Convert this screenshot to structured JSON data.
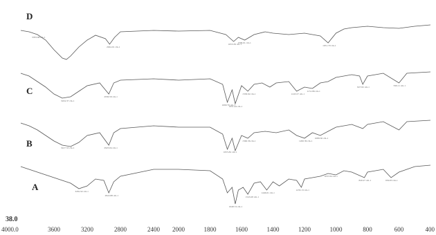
{
  "chart_data": {
    "type": "line",
    "title": "",
    "xlabel": "",
    "ylabel": "",
    "x_ticks": [
      4000.0,
      3600,
      3200,
      2800,
      2400,
      2000,
      1800,
      1600,
      1400,
      1200,
      1000,
      800,
      600,
      400
    ],
    "x_tick_labels": [
      "4000.0",
      "3600",
      "3200",
      "2800",
      "2400",
      "2000",
      "1800",
      "1600",
      "1400",
      "1200",
      "1000",
      "800",
      "600",
      "400"
    ],
    "xlim": [
      4000,
      400
    ],
    "y_tick_label": "38.0",
    "legend": "none",
    "grid": false,
    "series": [
      {
        "name": "D",
        "points": [
          [
            4000,
            8
          ],
          [
            3900,
            10
          ],
          [
            3800,
            14
          ],
          [
            3700,
            22
          ],
          [
            3600,
            36
          ],
          [
            3500,
            48
          ],
          [
            3450,
            50
          ],
          [
            3400,
            45
          ],
          [
            3300,
            32
          ],
          [
            3200,
            22
          ],
          [
            3100,
            15
          ],
          [
            2980,
            20
          ],
          [
            2930,
            28
          ],
          [
            2870,
            18
          ],
          [
            2800,
            10
          ],
          [
            2400,
            8
          ],
          [
            2000,
            9
          ],
          [
            1800,
            8
          ],
          [
            1700,
            14
          ],
          [
            1650,
            24
          ],
          [
            1620,
            18
          ],
          [
            1580,
            22
          ],
          [
            1520,
            14
          ],
          [
            1450,
            10
          ],
          [
            1400,
            12
          ],
          [
            1300,
            14
          ],
          [
            1200,
            12
          ],
          [
            1100,
            16
          ],
          [
            1050,
            26
          ],
          [
            1000,
            12
          ],
          [
            950,
            6
          ],
          [
            900,
            4
          ],
          [
            800,
            2
          ],
          [
            700,
            4
          ],
          [
            600,
            5
          ],
          [
            500,
            2
          ],
          [
            400,
            0
          ]
        ],
        "peaks": [
          {
            "x": 3800,
            "label": "3783.88 cm-1"
          },
          {
            "x": 2900,
            "label": "2924.01 cm-1"
          },
          {
            "x": 1650,
            "label": "1653.39 cm-1"
          },
          {
            "x": 1590,
            "label": "1596.61 cm-1"
          },
          {
            "x": 1050,
            "label": "1051.70 cm-1"
          }
        ]
      },
      {
        "name": "C",
        "points": [
          [
            4000,
            6
          ],
          [
            3900,
            10
          ],
          [
            3800,
            18
          ],
          [
            3700,
            26
          ],
          [
            3600,
            36
          ],
          [
            3500,
            42
          ],
          [
            3400,
            40
          ],
          [
            3300,
            32
          ],
          [
            3200,
            24
          ],
          [
            3050,
            20
          ],
          [
            2940,
            36
          ],
          [
            2880,
            20
          ],
          [
            2800,
            16
          ],
          [
            2400,
            14
          ],
          [
            2000,
            16
          ],
          [
            1800,
            14
          ],
          [
            1720,
            22
          ],
          [
            1690,
            48
          ],
          [
            1660,
            30
          ],
          [
            1640,
            50
          ],
          [
            1600,
            24
          ],
          [
            1560,
            32
          ],
          [
            1520,
            22
          ],
          [
            1470,
            20
          ],
          [
            1420,
            26
          ],
          [
            1380,
            20
          ],
          [
            1300,
            18
          ],
          [
            1250,
            32
          ],
          [
            1200,
            26
          ],
          [
            1150,
            28
          ],
          [
            1100,
            20
          ],
          [
            1050,
            18
          ],
          [
            1000,
            12
          ],
          [
            900,
            8
          ],
          [
            850,
            10
          ],
          [
            830,
            22
          ],
          [
            800,
            10
          ],
          [
            700,
            6
          ],
          [
            600,
            20
          ],
          [
            550,
            6
          ],
          [
            400,
            4
          ]
        ],
        "peaks": [
          {
            "x": 3450,
            "label": "3434.37 cm-1"
          },
          {
            "x": 2930,
            "label": "2930.59 cm-1"
          },
          {
            "x": 1690,
            "label": "1690.76 cm-1"
          },
          {
            "x": 1645,
            "label": "1651.44 cm-1"
          },
          {
            "x": 1560,
            "label": "1558.92 cm-1"
          },
          {
            "x": 1250,
            "label": "1245.57 cm-1"
          },
          {
            "x": 1150,
            "label": "1151.86 cm-1"
          },
          {
            "x": 830,
            "label": "827.82 cm-1"
          },
          {
            "x": 600,
            "label": "599.11 cm-1"
          }
        ]
      },
      {
        "name": "B",
        "points": [
          [
            4000,
            8
          ],
          [
            3900,
            12
          ],
          [
            3800,
            18
          ],
          [
            3700,
            26
          ],
          [
            3600,
            34
          ],
          [
            3500,
            40
          ],
          [
            3400,
            42
          ],
          [
            3300,
            36
          ],
          [
            3200,
            26
          ],
          [
            3050,
            22
          ],
          [
            2940,
            40
          ],
          [
            2880,
            22
          ],
          [
            2800,
            16
          ],
          [
            2400,
            12
          ],
          [
            2000,
            14
          ],
          [
            1800,
            14
          ],
          [
            1720,
            24
          ],
          [
            1690,
            46
          ],
          [
            1660,
            30
          ],
          [
            1640,
            48
          ],
          [
            1600,
            26
          ],
          [
            1560,
            30
          ],
          [
            1520,
            22
          ],
          [
            1450,
            20
          ],
          [
            1380,
            22
          ],
          [
            1300,
            18
          ],
          [
            1250,
            26
          ],
          [
            1200,
            30
          ],
          [
            1150,
            22
          ],
          [
            1100,
            26
          ],
          [
            1050,
            20
          ],
          [
            1000,
            14
          ],
          [
            900,
            10
          ],
          [
            830,
            16
          ],
          [
            800,
            10
          ],
          [
            700,
            6
          ],
          [
            600,
            18
          ],
          [
            550,
            6
          ],
          [
            400,
            4
          ]
        ],
        "peaks": [
          {
            "x": 3450,
            "label": "3417.53 cm-1"
          },
          {
            "x": 2930,
            "label": "2925.84 cm-1"
          },
          {
            "x": 1680,
            "label": "1655.82 cm-1"
          },
          {
            "x": 1560,
            "label": "1560.36 cm-1"
          },
          {
            "x": 1200,
            "label": "1200.39 cm-1"
          },
          {
            "x": 1100,
            "label": "1089.56 cm-1"
          }
        ]
      },
      {
        "name": "A",
        "points": [
          [
            4000,
            6
          ],
          [
            3900,
            10
          ],
          [
            3800,
            14
          ],
          [
            3700,
            18
          ],
          [
            3600,
            22
          ],
          [
            3500,
            26
          ],
          [
            3400,
            30
          ],
          [
            3300,
            38
          ],
          [
            3200,
            34
          ],
          [
            3100,
            24
          ],
          [
            3000,
            26
          ],
          [
            2940,
            44
          ],
          [
            2880,
            28
          ],
          [
            2800,
            20
          ],
          [
            2400,
            10
          ],
          [
            2000,
            10
          ],
          [
            1800,
            12
          ],
          [
            1720,
            24
          ],
          [
            1690,
            44
          ],
          [
            1660,
            36
          ],
          [
            1640,
            60
          ],
          [
            1620,
            40
          ],
          [
            1590,
            36
          ],
          [
            1560,
            46
          ],
          [
            1520,
            30
          ],
          [
            1480,
            28
          ],
          [
            1440,
            40
          ],
          [
            1400,
            28
          ],
          [
            1360,
            34
          ],
          [
            1300,
            24
          ],
          [
            1250,
            26
          ],
          [
            1220,
            36
          ],
          [
            1200,
            24
          ],
          [
            1150,
            22
          ],
          [
            1100,
            20
          ],
          [
            1050,
            16
          ],
          [
            1000,
            18
          ],
          [
            950,
            12
          ],
          [
            900,
            14
          ],
          [
            820,
            22
          ],
          [
            800,
            14
          ],
          [
            700,
            10
          ],
          [
            650,
            22
          ],
          [
            600,
            14
          ],
          [
            500,
            6
          ],
          [
            400,
            4
          ]
        ],
        "peaks": [
          {
            "x": 3280,
            "label": "3281.92 cm-1"
          },
          {
            "x": 2920,
            "label": "2922.88 cm-1"
          },
          {
            "x": 1645,
            "label": "1648.74 cm-1"
          },
          {
            "x": 1540,
            "label": "1543.28 cm-1"
          },
          {
            "x": 1440,
            "label": "1446.61 cm-1"
          },
          {
            "x": 1220,
            "label": "1233.13 cm-1"
          },
          {
            "x": 1040,
            "label": "1037.84 cm-1"
          },
          {
            "x": 820,
            "label": "820.27 cm-1"
          },
          {
            "x": 650,
            "label": "650.83 cm-1"
          }
        ]
      }
    ]
  }
}
